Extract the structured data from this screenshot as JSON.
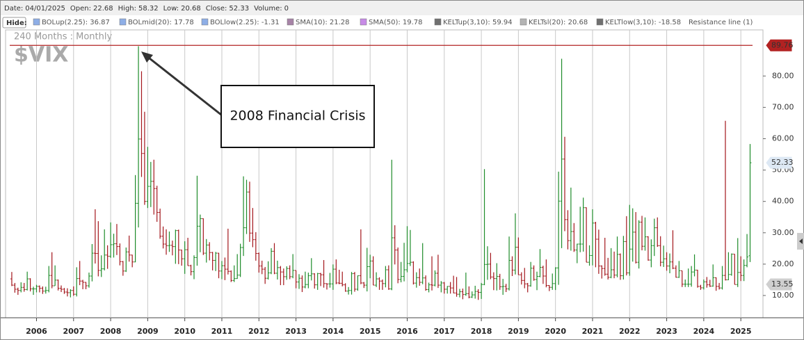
{
  "header": {
    "date_label": "Date:",
    "date": "04/01/2025",
    "open_label": "Open:",
    "high_label": "High:",
    "low_label": "Low:",
    "close_label": "Close:",
    "volume_label": "Volume:",
    "volume": 0,
    "hide": "Hide:"
  },
  "indicators": [
    {
      "name": "BOLup(2.25): 36.87",
      "color": "#8eaee6"
    },
    {
      "name": "BOLmid(20): 17.78",
      "color": "#8eaee6"
    },
    {
      "name": "BOLlow(2.25): -1.31",
      "color": "#8eaee6"
    },
    {
      "name": "SMA(10): 21.28",
      "color": "#a784a7"
    },
    {
      "name": "SMA(50): 19.78",
      "color": "#c78be6"
    },
    {
      "name": "KELTup(3,10): 59.94",
      "color": "#707070"
    },
    {
      "name": "KELTsl(20): 20.68",
      "color": "#b4b4b4"
    },
    {
      "name": "KELTlow(3,10): -18.58",
      "color": "#707070"
    },
    {
      "name": "Resistance line (1)",
      "color": null
    }
  ],
  "chart_data": {
    "type": "ohlc",
    "title": "$VIX",
    "subtitle": "240 Months : Monthly",
    "annotation": "2008 Financial Crisis",
    "up_color": "#1e8c2a",
    "down_color": "#a3151b",
    "resistance": 89.76,
    "resistance_color": "#b22222",
    "price_tag": 13.55,
    "ylim": [
      2.9,
      94.7
    ],
    "yticks": [
      {
        "value": 10,
        "label": "10.00"
      },
      {
        "value": 20,
        "label": "20.00"
      },
      {
        "value": 30,
        "label": "30.00"
      },
      {
        "value": 40,
        "label": "40.00"
      },
      {
        "value": 50,
        "label": "50.00"
      },
      {
        "value": 60,
        "label": "60.00"
      },
      {
        "value": 70,
        "label": "70.00"
      },
      {
        "value": 80,
        "label": "80.00"
      }
    ],
    "xticks": [
      2006,
      2007,
      2008,
      2009,
      2010,
      2011,
      2012,
      2013,
      2014,
      2015,
      2016,
      2017,
      2018,
      2019,
      2020,
      2021,
      2022,
      2023,
      2024,
      2025
    ],
    "grid": true,
    "bars": [
      [
        15.3,
        17.5,
        13.0,
        13.3
      ],
      [
        13.3,
        14.0,
        10.9,
        12.0
      ],
      [
        12.0,
        12.5,
        10.2,
        11.6
      ],
      [
        11.6,
        14.2,
        11.0,
        12.6
      ],
      [
        12.6,
        14.0,
        11.2,
        11.9
      ],
      [
        11.9,
        17.6,
        11.6,
        15.3
      ],
      [
        15.3,
        15.5,
        11.3,
        12.1
      ],
      [
        12.1,
        12.8,
        10.2,
        12.1
      ],
      [
        12.1,
        13.4,
        11.0,
        12.9
      ],
      [
        12.9,
        13.2,
        11.0,
        12.3
      ],
      [
        12.3,
        12.9,
        10.5,
        11.4
      ],
      [
        11.4,
        12.8,
        10.6,
        11.6
      ],
      [
        11.6,
        19.4,
        11.0,
        16.4
      ],
      [
        16.4,
        23.8,
        12.3,
        13.1
      ],
      [
        13.1,
        19.6,
        13.1,
        14.9
      ],
      [
        14.9,
        15.1,
        11.6,
        12.3
      ],
      [
        12.3,
        13.2,
        11.1,
        11.98
      ],
      [
        12.0,
        12.4,
        10.5,
        11.1
      ],
      [
        11.1,
        12.3,
        9.7,
        10.9
      ],
      [
        10.9,
        12.0,
        9.4,
        11.6
      ],
      [
        11.6,
        12.9,
        9.9,
        10.4
      ],
      [
        10.4,
        19.0,
        9.7,
        15.4
      ],
      [
        15.4,
        21.0,
        13.3,
        14.6
      ],
      [
        14.6,
        15.0,
        12.0,
        14.2
      ],
      [
        14.2,
        14.3,
        12.0,
        13.1
      ],
      [
        13.1,
        17.3,
        12.5,
        16.2
      ],
      [
        16.2,
        26.4,
        14.5,
        23.5
      ],
      [
        23.5,
        37.5,
        20.2,
        23.4
      ],
      [
        23.4,
        33.7,
        16.1,
        18.0
      ],
      [
        18.0,
        22.8,
        15.9,
        18.5
      ],
      [
        18.5,
        31.1,
        18.0,
        22.9
      ],
      [
        22.9,
        26.0,
        18.5,
        22.5
      ],
      [
        22.5,
        33.3,
        22.0,
        26.2
      ],
      [
        26.2,
        29.7,
        22.1,
        26.5
      ],
      [
        26.5,
        32.8,
        22.9,
        25.6
      ],
      [
        25.6,
        26.6,
        19.6,
        20.8
      ],
      [
        20.8,
        21.0,
        16.3,
        17.8
      ],
      [
        17.8,
        25.3,
        17.5,
        23.9
      ],
      [
        23.9,
        29.1,
        20.8,
        22.9
      ],
      [
        22.9,
        23.0,
        19.0,
        20.7
      ],
      [
        20.7,
        48.4,
        20.6,
        39.4
      ],
      [
        39.4,
        89.5,
        31.7,
        59.9
      ],
      [
        59.9,
        81.5,
        47.8,
        55.3
      ],
      [
        55.3,
        68.6,
        38.9,
        40.0
      ],
      [
        40.0,
        57.4,
        37.9,
        44.8
      ],
      [
        44.8,
        52.6,
        38.2,
        46.4
      ],
      [
        46.4,
        53.3,
        35.8,
        44.1
      ],
      [
        44.1,
        45.0,
        33.5,
        36.5
      ],
      [
        36.5,
        37.7,
        28.1,
        28.9
      ],
      [
        28.9,
        32.0,
        25.0,
        26.4
      ],
      [
        26.4,
        31.1,
        23.0,
        25.9
      ],
      [
        25.9,
        30.4,
        23.9,
        26.0
      ],
      [
        26.0,
        27.5,
        22.8,
        25.6
      ],
      [
        25.6,
        31.0,
        20.1,
        30.7
      ],
      [
        30.7,
        31.0,
        20.0,
        24.5
      ],
      [
        24.5,
        24.6,
        19.5,
        21.7
      ],
      [
        21.7,
        27.3,
        16.9,
        24.6
      ],
      [
        24.6,
        28.4,
        19.5,
        19.5
      ],
      [
        19.5,
        19.8,
        16.4,
        17.6
      ],
      [
        17.6,
        22.8,
        15.2,
        22.1
      ],
      [
        22.1,
        48.2,
        19.5,
        32.1
      ],
      [
        32.1,
        35.8,
        23.8,
        34.5
      ],
      [
        34.5,
        34.6,
        22.9,
        23.5
      ],
      [
        23.5,
        28.0,
        20.5,
        26.1
      ],
      [
        26.1,
        27.0,
        21.2,
        23.7
      ],
      [
        23.7,
        23.9,
        18.0,
        21.2
      ],
      [
        21.2,
        23.9,
        17.8,
        23.5
      ],
      [
        23.5,
        23.6,
        15.5,
        17.8
      ],
      [
        17.8,
        21.0,
        15.2,
        19.5
      ],
      [
        19.5,
        22.1,
        14.9,
        18.4
      ],
      [
        18.4,
        31.3,
        16.7,
        17.7
      ],
      [
        17.7,
        18.0,
        14.3,
        14.8
      ],
      [
        14.8,
        19.6,
        14.3,
        15.4
      ],
      [
        15.4,
        23.2,
        15.3,
        16.5
      ],
      [
        16.5,
        26.5,
        15.9,
        25.3
      ],
      [
        25.3,
        48.0,
        22.6,
        31.6
      ],
      [
        31.6,
        46.9,
        29.6,
        43.0
      ],
      [
        43.0,
        46.3,
        27.1,
        29.9
      ],
      [
        29.9,
        37.9,
        25.4,
        27.8
      ],
      [
        27.8,
        30.2,
        21.1,
        23.4
      ],
      [
        23.4,
        23.7,
        17.3,
        19.4
      ],
      [
        19.4,
        21.1,
        16.8,
        18.4
      ],
      [
        18.4,
        19.1,
        13.7,
        15.5
      ],
      [
        15.5,
        20.9,
        15.1,
        17.2
      ],
      [
        17.2,
        25.1,
        16.8,
        24.1
      ],
      [
        24.1,
        26.7,
        16.8,
        17.1
      ],
      [
        17.1,
        21.1,
        15.1,
        18.9
      ],
      [
        18.9,
        19.4,
        13.3,
        17.5
      ],
      [
        17.5,
        18.6,
        13.3,
        16.0
      ],
      [
        16.0,
        19.3,
        15.0,
        18.6
      ],
      [
        18.6,
        19.6,
        15.2,
        16.0
      ],
      [
        16.0,
        23.2,
        15.5,
        18.0
      ],
      [
        18.0,
        18.0,
        12.3,
        14.3
      ],
      [
        14.3,
        16.8,
        12.1,
        15.5
      ],
      [
        15.5,
        16.4,
        11.1,
        12.7
      ],
      [
        12.7,
        17.6,
        12.3,
        13.5
      ],
      [
        13.5,
        17.3,
        12.3,
        16.3
      ],
      [
        16.3,
        21.9,
        14.8,
        16.9
      ],
      [
        16.9,
        17.1,
        12.2,
        13.4
      ],
      [
        13.4,
        17.2,
        11.8,
        17.0
      ],
      [
        17.0,
        17.2,
        13.0,
        16.6
      ],
      [
        16.6,
        21.3,
        12.5,
        13.8
      ],
      [
        13.8,
        13.8,
        11.9,
        13.7
      ],
      [
        13.7,
        17.2,
        12.5,
        13.7
      ],
      [
        13.7,
        19.9,
        11.8,
        18.4
      ],
      [
        18.4,
        21.5,
        13.6,
        14.0
      ],
      [
        14.0,
        18.2,
        13.6,
        13.9
      ],
      [
        13.9,
        17.6,
        12.9,
        13.4
      ],
      [
        13.4,
        13.9,
        11.2,
        11.4
      ],
      [
        11.4,
        12.7,
        10.3,
        11.6
      ],
      [
        11.6,
        17.5,
        10.3,
        16.95
      ],
      [
        17.0,
        17.5,
        11.2,
        12.0
      ],
      [
        12.0,
        16.4,
        11.5,
        16.3
      ],
      [
        16.3,
        31.1,
        13.6,
        14.0
      ],
      [
        14.0,
        14.3,
        12.4,
        13.3
      ],
      [
        13.3,
        25.2,
        11.3,
        19.2
      ],
      [
        19.2,
        23.0,
        15.5,
        21.0
      ],
      [
        21.0,
        22.5,
        13.3,
        13.3
      ],
      [
        13.3,
        17.4,
        12.7,
        15.3
      ],
      [
        15.3,
        15.8,
        11.8,
        14.6
      ],
      [
        14.6,
        15.1,
        11.8,
        13.8
      ],
      [
        13.8,
        19.4,
        12.6,
        18.2
      ],
      [
        18.2,
        19.6,
        11.8,
        12.1
      ],
      [
        12.1,
        53.3,
        11.7,
        28.4
      ],
      [
        28.4,
        32.4,
        19.9,
        24.5
      ],
      [
        24.5,
        25.3,
        13.9,
        15.1
      ],
      [
        15.1,
        20.7,
        14.2,
        16.1
      ],
      [
        16.1,
        26.8,
        14.5,
        18.2
      ],
      [
        18.2,
        32.1,
        17.4,
        20.2
      ],
      [
        20.2,
        30.9,
        19.4,
        20.6
      ],
      [
        20.6,
        20.9,
        13.5,
        13.95
      ],
      [
        13.95,
        17.4,
        12.5,
        15.7
      ],
      [
        15.7,
        18.6,
        13.1,
        14.2
      ],
      [
        14.2,
        26.7,
        13.6,
        15.6
      ],
      [
        15.6,
        16.4,
        11.5,
        11.9
      ],
      [
        11.9,
        14.1,
        11.0,
        13.4
      ],
      [
        13.4,
        22.5,
        11.6,
        13.3
      ],
      [
        13.3,
        18.0,
        12.9,
        17.1
      ],
      [
        17.1,
        23.0,
        12.4,
        13.3
      ],
      [
        13.3,
        14.6,
        11.0,
        14.0
      ],
      [
        14.0,
        14.3,
        10.6,
        11.99
      ],
      [
        12.0,
        13.0,
        10.6,
        12.9
      ],
      [
        12.9,
        14.3,
        10.6,
        12.4
      ],
      [
        12.4,
        16.3,
        10.7,
        10.8
      ],
      [
        10.8,
        15.9,
        9.6,
        10.4
      ],
      [
        10.4,
        12.1,
        9.4,
        11.2
      ],
      [
        11.2,
        12.2,
        8.8,
        10.3
      ],
      [
        10.3,
        17.3,
        9.9,
        10.6
      ],
      [
        10.6,
        12.9,
        9.1,
        9.5
      ],
      [
        9.5,
        11.3,
        9.2,
        10.2
      ],
      [
        10.2,
        13.1,
        9.0,
        11.3
      ],
      [
        11.3,
        12.0,
        8.6,
        11.0
      ],
      [
        11.0,
        14.0,
        8.9,
        13.5
      ],
      [
        13.5,
        50.3,
        13.3,
        19.9
      ],
      [
        19.9,
        25.7,
        15.0,
        19.97
      ],
      [
        20.0,
        23.6,
        15.2,
        15.9
      ],
      [
        15.9,
        17.4,
        11.7,
        15.4
      ],
      [
        15.4,
        20.3,
        11.6,
        16.1
      ],
      [
        16.1,
        16.9,
        11.8,
        12.8
      ],
      [
        12.8,
        15.3,
        10.2,
        12.9
      ],
      [
        12.9,
        13.7,
        11.1,
        12.1
      ],
      [
        12.1,
        28.8,
        11.6,
        21.2
      ],
      [
        21.2,
        22.5,
        16.2,
        18.1
      ],
      [
        18.1,
        36.2,
        16.7,
        25.4
      ],
      [
        25.4,
        28.5,
        16.6,
        16.6
      ],
      [
        16.6,
        17.4,
        13.5,
        14.8
      ],
      [
        14.8,
        18.8,
        12.3,
        13.7
      ],
      [
        13.7,
        14.0,
        11.0,
        13.1
      ],
      [
        13.1,
        20.7,
        12.8,
        18.7
      ],
      [
        18.7,
        19.6,
        14.7,
        15.1
      ],
      [
        15.1,
        17.6,
        11.7,
        16.1
      ],
      [
        16.1,
        24.8,
        15.8,
        18.98
      ],
      [
        19.0,
        19.5,
        13.7,
        16.2
      ],
      [
        16.2,
        21.5,
        12.6,
        13.2
      ],
      [
        13.2,
        13.3,
        11.4,
        12.6
      ],
      [
        12.6,
        17.0,
        11.8,
        13.8
      ],
      [
        13.8,
        19.0,
        11.75,
        18.8
      ],
      [
        18.8,
        49.5,
        13.4,
        40.1
      ],
      [
        40.1,
        85.5,
        25.1,
        53.5
      ],
      [
        53.5,
        60.6,
        30.5,
        34.2
      ],
      [
        34.2,
        37.2,
        24.7,
        27.5
      ],
      [
        27.5,
        44.4,
        24.3,
        30.4
      ],
      [
        30.4,
        33.1,
        23.9,
        24.5
      ],
      [
        24.5,
        26.5,
        20.3,
        26.4
      ],
      [
        26.4,
        38.3,
        23.8,
        26.4
      ],
      [
        26.4,
        41.2,
        24.0,
        38.0
      ],
      [
        38.0,
        38.1,
        20.6,
        20.6
      ],
      [
        20.6,
        26.0,
        19.5,
        22.75
      ],
      [
        22.75,
        37.5,
        19.6,
        33.1
      ],
      [
        33.1,
        33.5,
        19.0,
        27.95
      ],
      [
        27.95,
        31.0,
        16.9,
        19.4
      ],
      [
        19.4,
        19.6,
        15.4,
        18.6
      ],
      [
        18.6,
        28.4,
        16.3,
        16.8
      ],
      [
        16.8,
        22.0,
        15.1,
        15.8
      ],
      [
        15.8,
        25.1,
        15.5,
        18.2
      ],
      [
        18.2,
        24.0,
        15.5,
        16.5
      ],
      [
        16.5,
        28.8,
        15.8,
        23.1
      ],
      [
        23.1,
        23.4,
        15.0,
        16.3
      ],
      [
        16.3,
        29.0,
        15.1,
        27.2
      ],
      [
        27.2,
        35.3,
        16.4,
        17.2
      ],
      [
        17.2,
        38.9,
        16.3,
        24.8
      ],
      [
        24.8,
        37.8,
        20.8,
        30.2
      ],
      [
        30.2,
        36.6,
        20.2,
        20.6
      ],
      [
        20.6,
        34.0,
        18.6,
        33.4
      ],
      [
        33.4,
        35.4,
        24.4,
        25.7
      ],
      [
        25.7,
        34.9,
        24.3,
        28.7
      ],
      [
        28.7,
        28.9,
        21.1,
        21.3
      ],
      [
        21.3,
        27.9,
        19.0,
        25.9
      ],
      [
        25.9,
        34.5,
        22.6,
        31.6
      ],
      [
        31.6,
        34.9,
        25.5,
        25.9
      ],
      [
        25.9,
        28.9,
        19.3,
        20.6
      ],
      [
        20.6,
        25.9,
        19.1,
        21.7
      ],
      [
        21.7,
        23.8,
        17.9,
        19.4
      ],
      [
        19.4,
        23.4,
        17.1,
        20.7
      ],
      [
        20.7,
        30.8,
        18.4,
        18.7
      ],
      [
        18.7,
        19.6,
        15.7,
        15.8
      ],
      [
        15.8,
        21.0,
        15.6,
        17.9
      ],
      [
        17.9,
        17.9,
        12.7,
        13.6
      ],
      [
        13.6,
        15.1,
        12.7,
        13.6
      ],
      [
        13.6,
        18.6,
        12.7,
        13.6
      ],
      [
        13.6,
        19.4,
        12.8,
        17.5
      ],
      [
        17.5,
        23.1,
        16.1,
        18.1
      ],
      [
        18.1,
        18.2,
        12.5,
        12.9
      ],
      [
        12.9,
        13.4,
        11.8,
        12.45
      ],
      [
        12.45,
        15.1,
        11.9,
        14.35
      ],
      [
        14.35,
        15.9,
        12.5,
        13.4
      ],
      [
        13.4,
        15.0,
        12.7,
        13.0
      ],
      [
        13.0,
        19.9,
        12.8,
        15.65
      ],
      [
        15.65,
        15.8,
        11.5,
        12.9
      ],
      [
        12.9,
        14.0,
        11.9,
        12.4
      ],
      [
        12.4,
        19.4,
        11.9,
        16.4
      ],
      [
        16.4,
        65.7,
        14.8,
        15.0
      ],
      [
        15.0,
        23.8,
        14.9,
        16.7
      ],
      [
        16.7,
        23.4,
        16.3,
        23.2
      ],
      [
        23.2,
        23.2,
        13.5,
        13.5
      ],
      [
        13.5,
        28.3,
        12.7,
        17.35
      ],
      [
        17.35,
        22.5,
        14.6,
        16.4
      ],
      [
        16.4,
        21.5,
        14.6,
        19.6
      ],
      [
        19.6,
        29.6,
        19.0,
        22.28
      ],
      [
        22.68,
        58.32,
        20.68,
        52.33
      ]
    ]
  }
}
